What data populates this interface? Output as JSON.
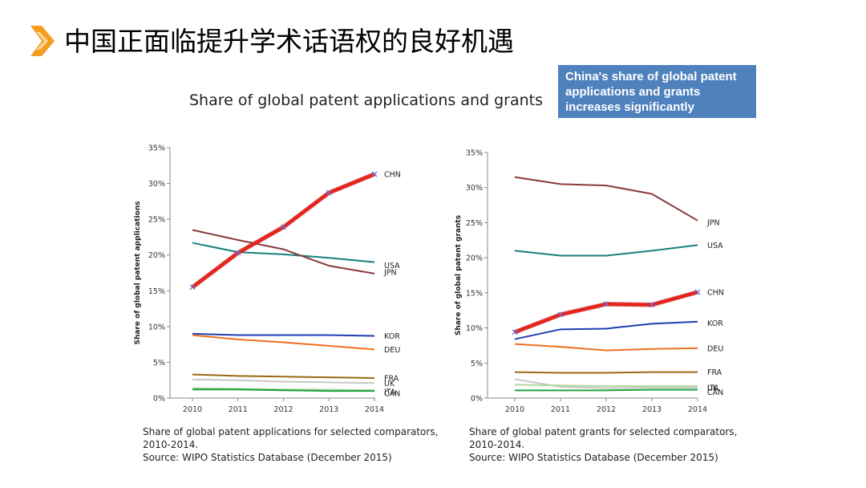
{
  "slide": {
    "title": "中国正面临提升学术话语权的良好机遇",
    "subtitle": "Share of global patent applications and grants",
    "callout": [
      "China's share of global patent",
      "applications and grants",
      "increases significantly"
    ],
    "accent_color": "#f59d1f",
    "callout_color": "#4f81bd",
    "title_icon": "chevron-right-icon"
  },
  "chart_data": [
    {
      "type": "line",
      "ylabel": "Share of global patent applications",
      "xlabel": "",
      "x": [
        "2010",
        "2011",
        "2012",
        "2013",
        "2014"
      ],
      "ylim": [
        0,
        35
      ],
      "yticks": [
        "0%",
        "5%",
        "10%",
        "15%",
        "20%",
        "25%",
        "30%",
        "35%"
      ],
      "series": [
        {
          "name": "CHN",
          "color": "#e8231c",
          "width": 4,
          "markers": true,
          "values": [
            15.5,
            20.3,
            23.9,
            28.7,
            31.3
          ]
        },
        {
          "name": "USA",
          "color": "#17807e",
          "width": 2,
          "values": [
            21.7,
            20.4,
            20.1,
            19.6,
            19.0
          ]
        },
        {
          "name": "JPN",
          "color": "#8b3a3a",
          "width": 2,
          "values": [
            23.5,
            22.1,
            20.8,
            18.5,
            17.4
          ]
        },
        {
          "name": "KOR",
          "color": "#1f3fb4",
          "width": 2,
          "values": [
            9.0,
            8.8,
            8.8,
            8.8,
            8.7
          ]
        },
        {
          "name": "DEU",
          "color": "#ef6f21",
          "width": 2,
          "values": [
            8.8,
            8.2,
            7.8,
            7.3,
            6.8
          ]
        },
        {
          "name": "FRA",
          "color": "#9c6a12",
          "width": 2,
          "values": [
            3.3,
            3.1,
            3.0,
            2.9,
            2.8
          ]
        },
        {
          "name": "UK",
          "color": "#c8c8c8",
          "width": 2,
          "values": [
            2.6,
            2.5,
            2.3,
            2.2,
            2.1
          ]
        },
        {
          "name": "ITA",
          "color": "#b3d7a1",
          "width": 2,
          "values": [
            1.4,
            1.3,
            1.2,
            1.2,
            1.1
          ]
        },
        {
          "name": "CAN",
          "color": "#1aa33c",
          "width": 2,
          "values": [
            1.2,
            1.2,
            1.1,
            1.0,
            1.0
          ]
        }
      ],
      "caption": [
        "Share of global patent applications for selected comparators,",
        "2010-2014.",
        "Source: WIPO Statistics Database (December 2015)"
      ]
    },
    {
      "type": "line",
      "ylabel": "Share of global patent grants",
      "xlabel": "",
      "x": [
        "2010",
        "2011",
        "2012",
        "2013",
        "2014"
      ],
      "ylim": [
        0,
        35
      ],
      "yticks": [
        "0%",
        "5%",
        "10%",
        "15%",
        "20%",
        "25%",
        "30%",
        "35%"
      ],
      "series": [
        {
          "name": "JPN",
          "color": "#8b3a3a",
          "width": 2,
          "values": [
            31.5,
            30.5,
            30.3,
            29.1,
            25.3
          ]
        },
        {
          "name": "USA",
          "color": "#17807e",
          "width": 2,
          "values": [
            21.0,
            20.3,
            20.3,
            21.0,
            21.8
          ]
        },
        {
          "name": "CHN",
          "color": "#e8231c",
          "width": 4,
          "markers": true,
          "values": [
            9.4,
            11.9,
            13.4,
            13.3,
            15.1
          ]
        },
        {
          "name": "KOR",
          "color": "#1f3fb4",
          "width": 2,
          "values": [
            8.4,
            9.8,
            9.9,
            10.6,
            10.9
          ]
        },
        {
          "name": "DEU",
          "color": "#ef6f21",
          "width": 2,
          "values": [
            7.7,
            7.3,
            6.8,
            7.0,
            7.1
          ]
        },
        {
          "name": "FRA",
          "color": "#9c6a12",
          "width": 2,
          "values": [
            3.7,
            3.6,
            3.6,
            3.7,
            3.7
          ]
        },
        {
          "name": "UK",
          "color": "#c8c8c8",
          "width": 2,
          "values": [
            2.7,
            1.6,
            1.4,
            1.5,
            1.5
          ]
        },
        {
          "name": "ITA",
          "color": "#b3d7a1",
          "width": 2,
          "values": [
            1.9,
            1.8,
            1.7,
            1.7,
            1.7
          ]
        },
        {
          "name": "CAN",
          "color": "#1aa33c",
          "width": 2,
          "values": [
            1.1,
            1.1,
            1.1,
            1.2,
            1.2
          ]
        }
      ],
      "caption": [
        "Share of global patent grants for selected comparators,",
        "2010-2014.",
        "Source: WIPO Statistics Database (December 2015)"
      ]
    }
  ]
}
